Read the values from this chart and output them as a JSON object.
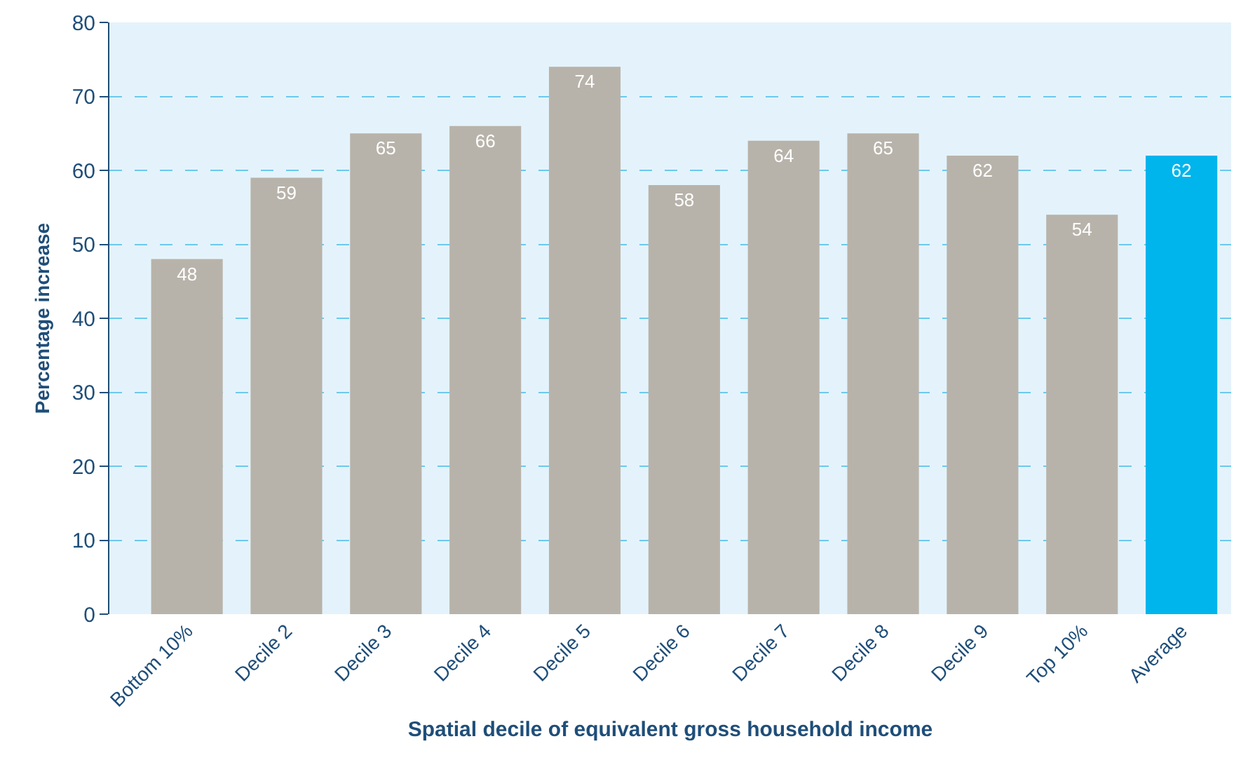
{
  "chart_data": {
    "type": "bar",
    "xlabel": "Spatial decile of equivalent gross household income",
    "ylabel": "Percentage increase",
    "categories": [
      "Bottom 10%",
      "Decile 2",
      "Decile 3",
      "Decile 4",
      "Decile 5",
      "Decile 6",
      "Decile 7",
      "Decile 8",
      "Decile 9",
      "Top 10%",
      "Average"
    ],
    "values": [
      48,
      59,
      65,
      66,
      74,
      58,
      64,
      65,
      62,
      54,
      62
    ],
    "colors": [
      "#b8b3aa",
      "#b8b3aa",
      "#b8b3aa",
      "#b8b3aa",
      "#b8b3aa",
      "#b8b3aa",
      "#b8b3aa",
      "#b8b3aa",
      "#b8b3aa",
      "#b8b3aa",
      "#00b4ec"
    ],
    "ylim": [
      0,
      80
    ],
    "yticks": [
      0,
      10,
      20,
      30,
      40,
      50,
      60,
      70,
      80
    ],
    "grid": "y",
    "data_labels": true
  }
}
